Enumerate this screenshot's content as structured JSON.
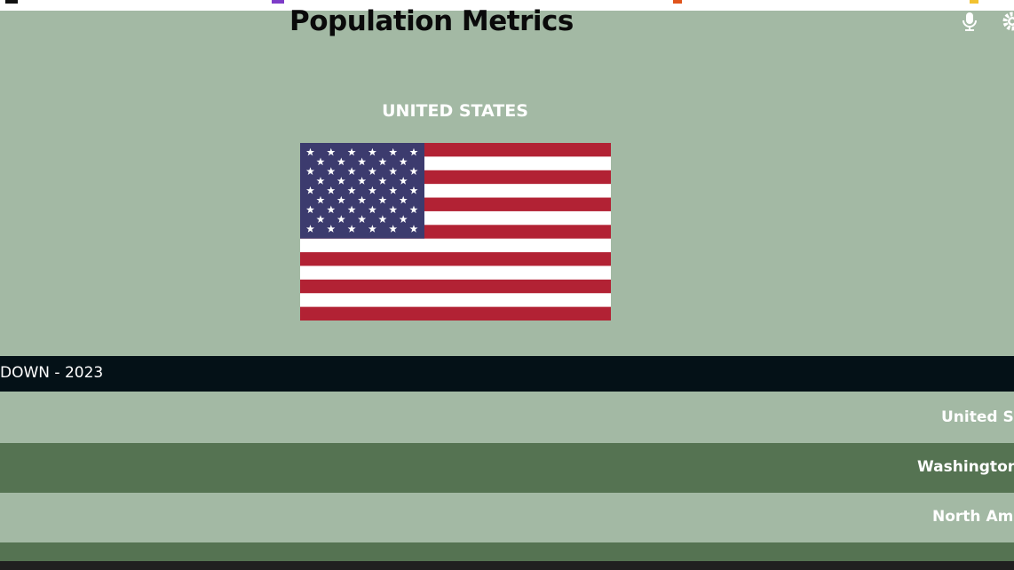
{
  "header": {
    "title": "Population Metrics"
  },
  "country": {
    "name": "UNITED STATES"
  },
  "table": {
    "caption": "DOWN - 2023",
    "rows": [
      "United Sta",
      "Washington,",
      "North Ame"
    ]
  }
}
